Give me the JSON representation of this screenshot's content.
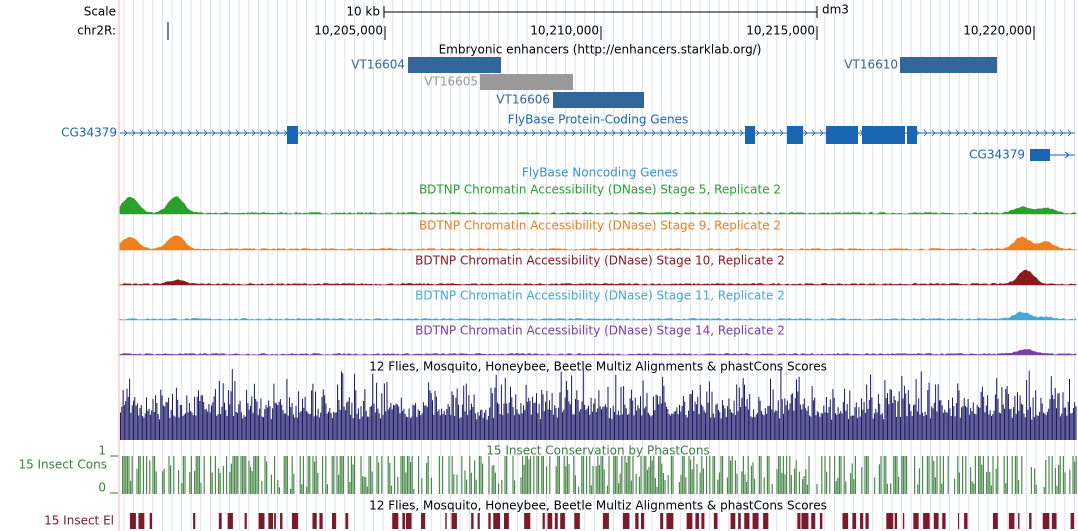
{
  "ruler": {
    "scale": "Scale",
    "scale_bar": "10 kb",
    "assembly": "dm3",
    "chrom": "chr2R:",
    "ticks": [
      "10,205,000",
      "10,210,000",
      "10,215,000",
      "10,220,000"
    ]
  },
  "tracks": {
    "enhancers": {
      "title": "Embryonic enhancers (http://enhancers.starklab.org/)",
      "features": [
        "VT16604",
        "VT16605",
        "VT16606",
        "VT16610"
      ]
    },
    "genes": {
      "title": "FlyBase Protein-Coding Genes",
      "gene_labels": [
        "CG34379",
        "CG34379"
      ]
    },
    "noncoding": {
      "title": "FlyBase Noncoding Genes"
    },
    "dnase": [
      "BDTNP Chromatin Accessibility (DNase) Stage 5, Replicate 2",
      "BDTNP Chromatin Accessibility (DNase) Stage 9, Replicate 2",
      "BDTNP Chromatin Accessibility (DNase) Stage 10, Replicate 2",
      "BDTNP Chromatin Accessibility (DNase) Stage 11, Replicate 2",
      "BDTNP Chromatin Accessibility (DNase) Stage 14, Replicate 2"
    ],
    "multiz": {
      "title": "12 Flies, Mosquito, Honeybee, Beetle Multiz Alignments & phastCons Scores"
    },
    "phastcons": {
      "title": "15 Insect Conservation by PhastCons",
      "side_label": "15 Insect Cons",
      "scale_max": "1",
      "scale_min": "0"
    },
    "elements": {
      "title": "12 Flies, Mosquito, Honeybee, Beetle Multiz Alignments & phastCons Scores",
      "side_label": "15 Insect El"
    }
  }
}
